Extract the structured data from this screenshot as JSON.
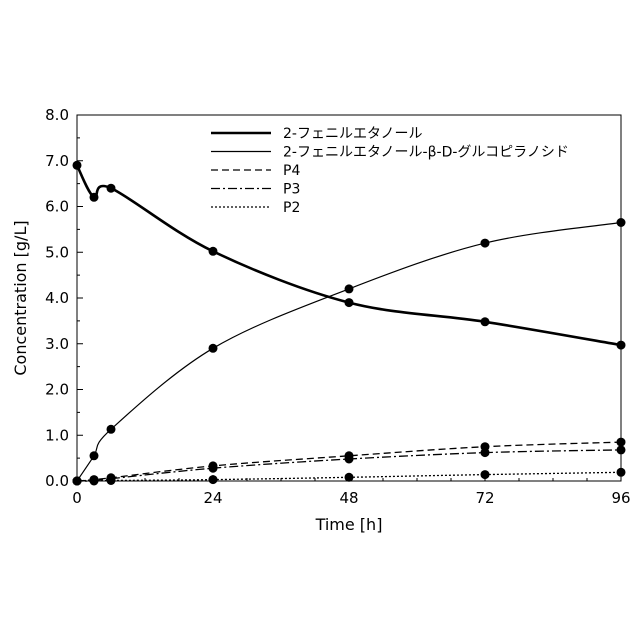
{
  "chart_data": {
    "type": "line",
    "xlabel": "Time [h]",
    "ylabel": "Concentration [g/L]",
    "xlim": [
      0,
      96
    ],
    "ylim": [
      0,
      8
    ],
    "x_ticks": [
      "0",
      "24",
      "48",
      "72",
      "96"
    ],
    "y_ticks": [
      "0.0",
      "1.0",
      "2.0",
      "3.0",
      "4.0",
      "5.0",
      "6.0",
      "7.0",
      "8.0"
    ],
    "grid": false,
    "legend_position": "top-right",
    "series": [
      {
        "name": "2-フェニルエタノール",
        "style": "thick-solid",
        "x": [
          0,
          3,
          6,
          24,
          48,
          72,
          96
        ],
        "y": [
          6.9,
          6.2,
          6.4,
          5.02,
          3.9,
          3.48,
          2.97
        ]
      },
      {
        "name": "2-フェニルエタノール-β-D-グルコピラノシド",
        "style": "thin-solid",
        "x": [
          0,
          3,
          6,
          24,
          48,
          72,
          96
        ],
        "y": [
          0,
          0.55,
          1.13,
          2.9,
          4.2,
          5.2,
          5.65
        ]
      },
      {
        "name": "P4",
        "style": "dashed",
        "x": [
          0,
          3,
          6,
          24,
          48,
          72,
          96
        ],
        "y": [
          0,
          0.03,
          0.07,
          0.33,
          0.55,
          0.75,
          0.85
        ]
      },
      {
        "name": "P3",
        "style": "dash-dot",
        "x": [
          0,
          3,
          6,
          24,
          48,
          72,
          96
        ],
        "y": [
          0,
          0.02,
          0.05,
          0.28,
          0.48,
          0.62,
          0.68
        ]
      },
      {
        "name": "P2",
        "style": "dotted",
        "x": [
          0,
          3,
          6,
          24,
          48,
          72,
          96
        ],
        "y": [
          0,
          0,
          0.01,
          0.03,
          0.08,
          0.14,
          0.19
        ]
      }
    ]
  }
}
